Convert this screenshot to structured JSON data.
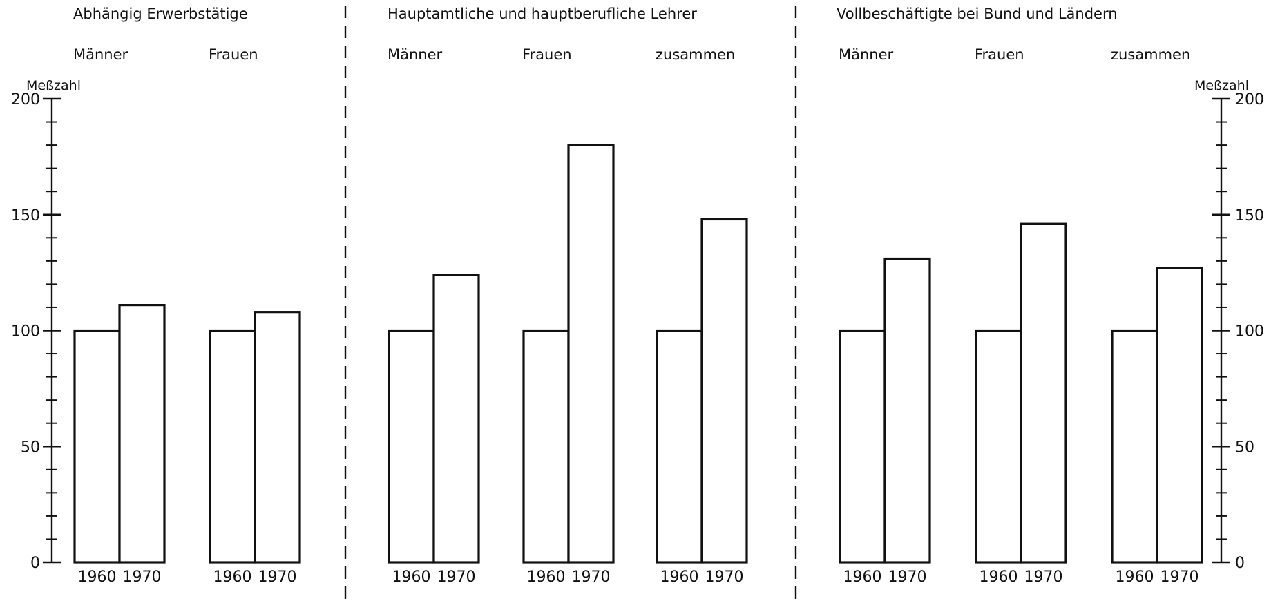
{
  "chart_data": {
    "type": "bar",
    "y_axis_label": "Meßzahl",
    "ylim": [
      0,
      200
    ],
    "y_ticks": [
      0,
      50,
      100,
      150,
      200
    ],
    "y_tick_labels": [
      "0",
      "50",
      "100",
      "150",
      "200"
    ],
    "grid": false,
    "panels": [
      {
        "title": "Abhängig  Erwerbstätige",
        "groups": [
          {
            "label": "Männer",
            "categories": [
              "1960",
              "1970"
            ],
            "values": [
              100,
              111
            ]
          },
          {
            "label": "Frauen",
            "categories": [
              "1960",
              "1970"
            ],
            "values": [
              100,
              108
            ]
          }
        ]
      },
      {
        "title": "Hauptamtliche und hauptberufliche Lehrer",
        "groups": [
          {
            "label": "Männer",
            "categories": [
              "1960",
              "1970"
            ],
            "values": [
              100,
              124
            ]
          },
          {
            "label": "Frauen",
            "categories": [
              "1960",
              "1970"
            ],
            "values": [
              100,
              180
            ]
          },
          {
            "label": "zusammen",
            "categories": [
              "1960",
              "1970"
            ],
            "values": [
              100,
              148
            ]
          }
        ]
      },
      {
        "title": "Vollbeschäftigte bei Bund und Ländern",
        "groups": [
          {
            "label": "Männer",
            "categories": [
              "1960",
              "1970"
            ],
            "values": [
              100,
              131
            ]
          },
          {
            "label": "Frauen",
            "categories": [
              "1960",
              "1970"
            ],
            "values": [
              100,
              146
            ]
          },
          {
            "label": "zusammen",
            "categories": [
              "1960",
              "1970"
            ],
            "values": [
              100,
              127
            ]
          }
        ]
      }
    ]
  }
}
